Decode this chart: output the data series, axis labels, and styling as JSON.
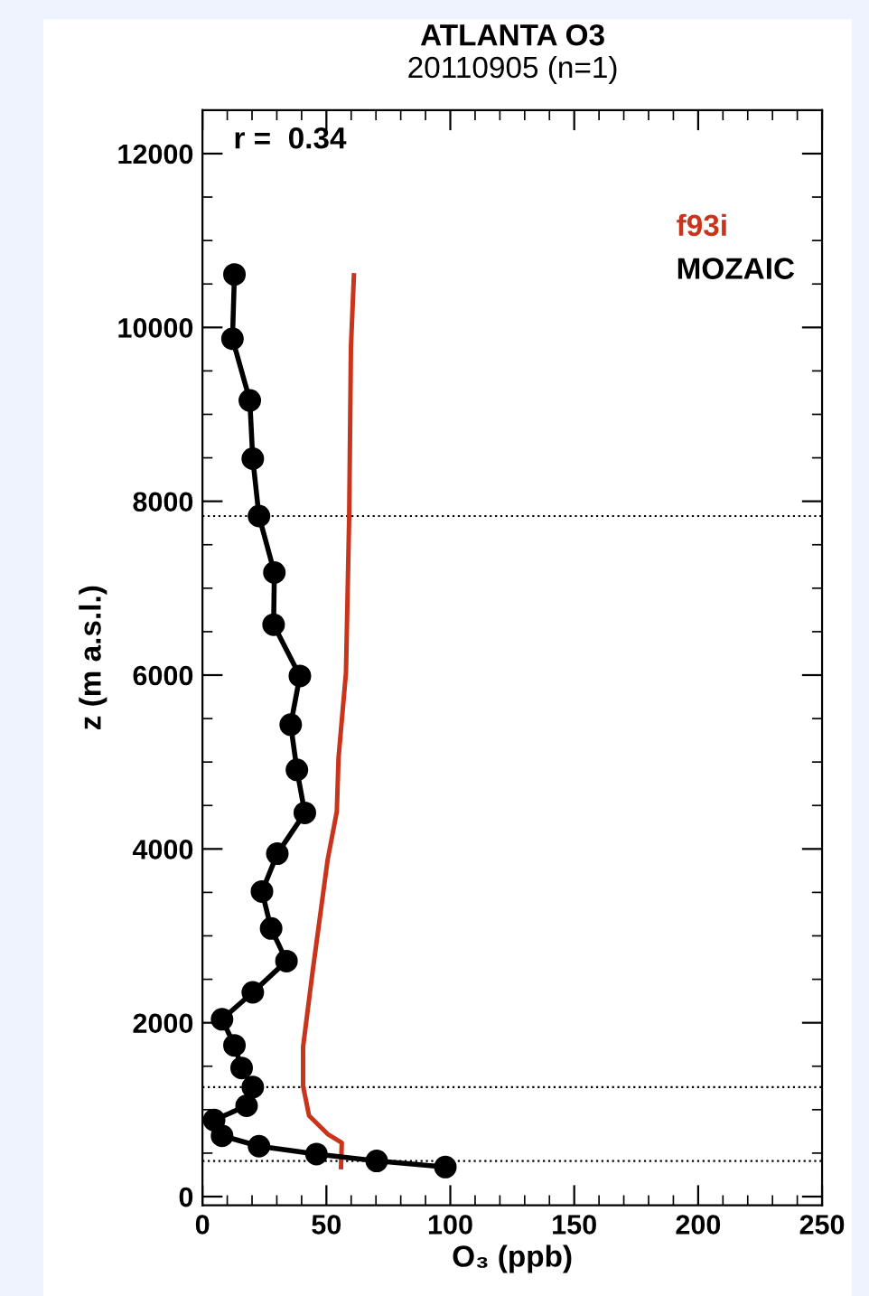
{
  "chart_data": {
    "type": "line",
    "title": "ATLANTA O3",
    "subtitle": "20110905 (n=1)",
    "xlabel": "O₃ (ppb)",
    "ylabel": "z (m a.s.l.)",
    "annotations": [
      "r =  0.34"
    ],
    "xlim": [
      0,
      250
    ],
    "xticks": [
      0,
      50,
      100,
      150,
      200,
      250
    ],
    "ylim": [
      -100,
      12500
    ],
    "yticks": [
      0,
      2000,
      4000,
      6000,
      8000,
      10000,
      12000
    ],
    "grid": false,
    "legend": "top right",
    "line_style": "solid",
    "ref_lines": [
      {
        "axis": "y",
        "value": 7830,
        "color": "#000000",
        "line_style": "dotted"
      },
      {
        "axis": "y",
        "value": 1260,
        "color": "#000000",
        "line_style": "dotted"
      },
      {
        "axis": "y",
        "value": 410,
        "color": "#000000",
        "line_style": "dotted"
      }
    ],
    "series": [
      {
        "name": "f93i",
        "color": "#c8341c",
        "marker": "none",
        "x": [
          61.1,
          59.9,
          59.2,
          57.9,
          54.9,
          54.2,
          50.5,
          44.3,
          40.6,
          40.6,
          43,
          50.5,
          56.2,
          55.9
        ],
        "values": [
          10600,
          9770,
          7830,
          6030,
          5050,
          4430,
          3875,
          2560,
          1725,
          1270,
          930,
          720,
          620,
          340
        ]
      },
      {
        "name": "MOZAIC",
        "color": "#000000",
        "marker": "circle",
        "x": [
          12.9,
          12.1,
          19.1,
          20.3,
          22.8,
          29,
          28.7,
          39.3,
          35.6,
          38.1,
          41.3,
          30.2,
          24,
          27.7,
          33.9,
          20.3,
          7.9,
          12.9,
          15.8,
          20.3,
          17.8,
          4.7,
          7.9,
          22.8,
          46,
          70.3,
          98
        ],
        "values": [
          10610,
          9870,
          9160,
          8490,
          7830,
          7180,
          6580,
          5990,
          5430,
          4910,
          4415,
          3945,
          3510,
          3085,
          2710,
          2350,
          2040,
          1740,
          1480,
          1260,
          1045,
          880,
          700,
          580,
          490,
          410,
          340
        ]
      }
    ]
  }
}
